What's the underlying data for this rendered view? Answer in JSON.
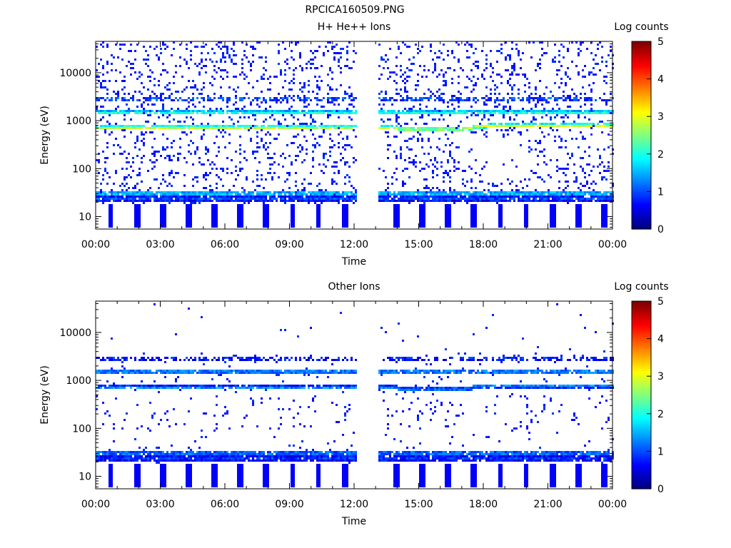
{
  "figure_title": "RPCICA160509.PNG",
  "chart_data": [
    {
      "type": "heatmap",
      "title": "H+ He++ Ions",
      "xlabel": "Time",
      "ylabel": "Energy (eV)",
      "y_scale": "log",
      "ylim": [
        5.5,
        45000
      ],
      "x_ticks": [
        "00:00",
        "03:00",
        "06:00",
        "09:00",
        "12:00",
        "15:00",
        "18:00",
        "21:00",
        "00:00"
      ],
      "y_ticks": [
        10,
        100,
        1000,
        10000
      ],
      "y_tick_labels": [
        "10",
        "100",
        "1000",
        "10000"
      ],
      "data_gap_hours": [
        12.1,
        13.05
      ],
      "bands": [
        {
          "energy_ev": 750,
          "log_counts": 3.0,
          "drift": "rises to ~820 eV after 17:00"
        },
        {
          "energy_ev": 1550,
          "log_counts": 2.2
        },
        {
          "energy_ev": 3000,
          "log_counts": 1.2
        },
        {
          "energy_ev": 32,
          "log_counts": 1.7
        },
        {
          "energy_ev": 25,
          "log_counts": 1.0
        }
      ],
      "colorbar": {
        "label": "Log counts",
        "range": [
          0,
          5
        ],
        "ticks": [
          "0",
          "1",
          "2",
          "3",
          "4",
          "5"
        ],
        "colormap": "jet"
      },
      "background": "#ffffff"
    },
    {
      "type": "heatmap",
      "title": "Other Ions",
      "xlabel": "Time",
      "ylabel": "Energy (eV)",
      "y_scale": "log",
      "ylim": [
        5.5,
        45000
      ],
      "x_ticks": [
        "00:00",
        "03:00",
        "06:00",
        "09:00",
        "12:00",
        "15:00",
        "18:00",
        "21:00",
        "00:00"
      ],
      "y_ticks": [
        10,
        100,
        1000,
        10000
      ],
      "y_tick_labels": [
        "10",
        "100",
        "1000",
        "10000"
      ],
      "data_gap_hours": [
        12.1,
        13.05
      ],
      "bands": [
        {
          "energy_ev": 740,
          "log_counts": 1.3,
          "drift": "rises to ~800 eV after 17:00"
        },
        {
          "energy_ev": 1600,
          "log_counts": 1.5
        },
        {
          "energy_ev": 3000,
          "log_counts": 0.9
        },
        {
          "energy_ev": 32,
          "log_counts": 1.3
        },
        {
          "energy_ev": 25,
          "log_counts": 0.9
        }
      ],
      "colorbar": {
        "label": "Log counts",
        "range": [
          0,
          5
        ],
        "ticks": [
          "0",
          "1",
          "2",
          "3",
          "4",
          "5"
        ],
        "colormap": "jet"
      },
      "background": "#ffffff"
    }
  ]
}
